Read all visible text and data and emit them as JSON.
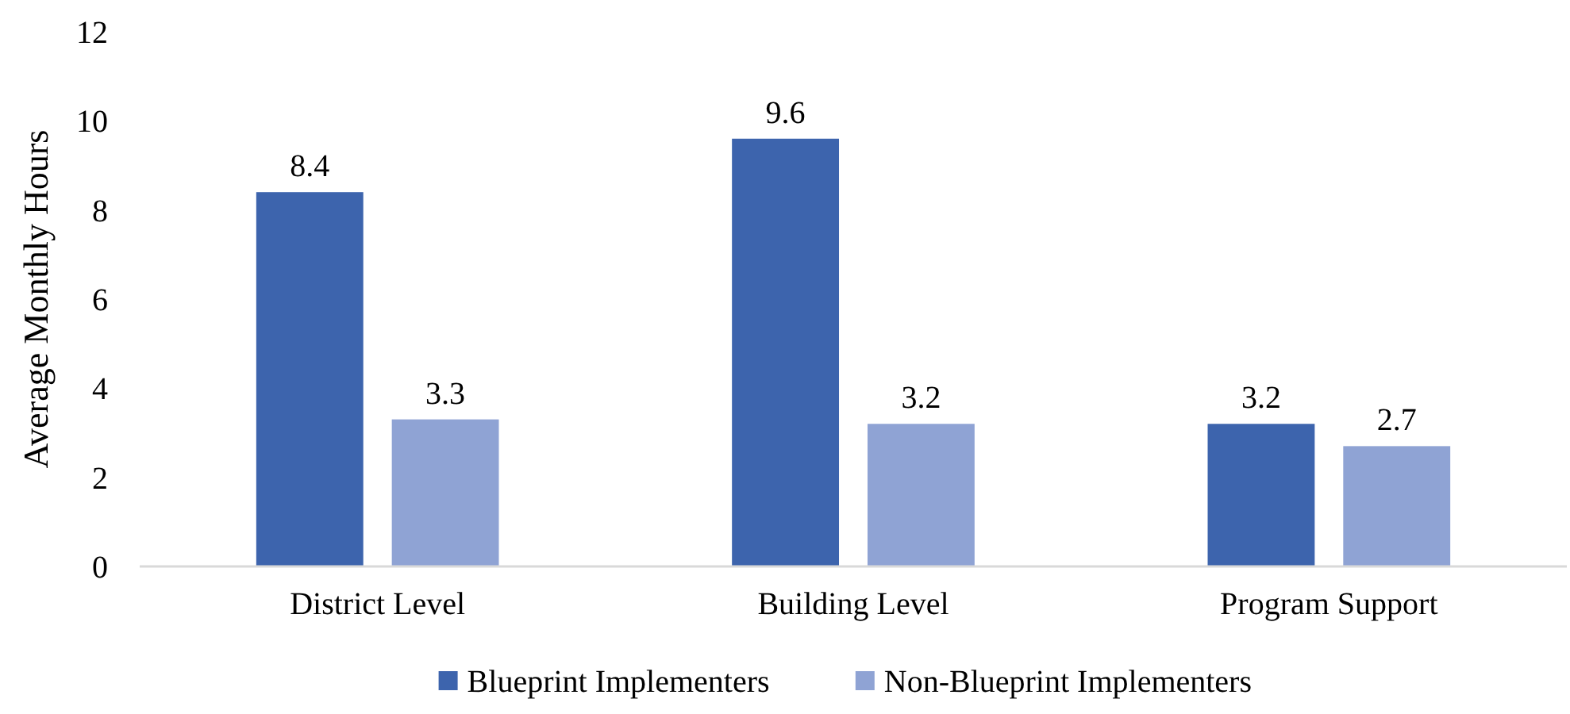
{
  "chart_data": {
    "type": "bar",
    "ylabel": "Average Monthly Hours",
    "categories": [
      "District Level",
      "Building Level",
      "Program Support"
    ],
    "series": [
      {
        "name": "Blueprint Implementers",
        "color": "#3d64ad",
        "values": [
          8.4,
          9.6,
          3.2
        ]
      },
      {
        "name": "Non-Blueprint Implementers",
        "color": "#8fa3d4",
        "values": [
          3.3,
          3.2,
          2.7
        ]
      }
    ],
    "ylim": [
      0,
      12
    ],
    "yticks": [
      0,
      2,
      4,
      6,
      8,
      10,
      12
    ],
    "data_labels": true,
    "legend": "bottom",
    "grid": false
  }
}
